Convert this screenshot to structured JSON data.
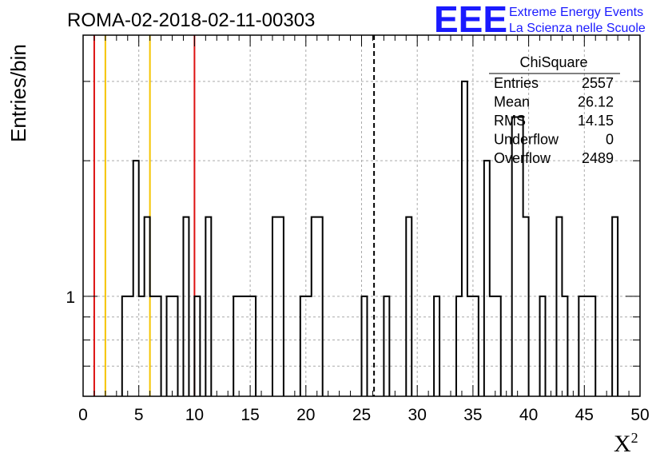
{
  "chart_data": {
    "type": "histogram",
    "title": "ROMA-02-2018-02-11-00303",
    "xlabel": "X",
    "xlabel_superscript": "2",
    "ylabel": "Entries/bin",
    "xlim": [
      0,
      50
    ],
    "ylim": [
      0.6,
      3.8
    ],
    "y_scale": "log",
    "grid": true,
    "x_ticks": [
      "0",
      "5",
      "10",
      "15",
      "20",
      "25",
      "30",
      "35",
      "40",
      "45",
      "50"
    ],
    "y_tick_labels": [
      {
        "value": 1,
        "label": "1"
      }
    ],
    "bin_width": 0.5,
    "bins": [
      {
        "x": 3.5,
        "y": 1
      },
      {
        "x": 4.0,
        "y": 1
      },
      {
        "x": 4.5,
        "y": 2
      },
      {
        "x": 5.0,
        "y": 1
      },
      {
        "x": 5.5,
        "y": 1.5
      },
      {
        "x": 6.0,
        "y": 1
      },
      {
        "x": 6.5,
        "y": 1
      },
      {
        "x": 7.5,
        "y": 1
      },
      {
        "x": 8.0,
        "y": 1
      },
      {
        "x": 9.0,
        "y": 1.5
      },
      {
        "x": 10.0,
        "y": 1
      },
      {
        "x": 11.0,
        "y": 1.5
      },
      {
        "x": 13.5,
        "y": 1
      },
      {
        "x": 14.0,
        "y": 1
      },
      {
        "x": 14.5,
        "y": 1
      },
      {
        "x": 15.0,
        "y": 1
      },
      {
        "x": 17.0,
        "y": 1.5
      },
      {
        "x": 17.5,
        "y": 1.5
      },
      {
        "x": 19.5,
        "y": 1
      },
      {
        "x": 20.0,
        "y": 1
      },
      {
        "x": 20.5,
        "y": 1.5
      },
      {
        "x": 21.0,
        "y": 1.5
      },
      {
        "x": 25.0,
        "y": 1
      },
      {
        "x": 27.0,
        "y": 1
      },
      {
        "x": 29.0,
        "y": 1.5
      },
      {
        "x": 31.5,
        "y": 1
      },
      {
        "x": 33.5,
        "y": 1
      },
      {
        "x": 34.0,
        "y": 3
      },
      {
        "x": 34.5,
        "y": 1
      },
      {
        "x": 35.0,
        "y": 1
      },
      {
        "x": 36.0,
        "y": 2
      },
      {
        "x": 36.5,
        "y": 1
      },
      {
        "x": 37.0,
        "y": 1
      },
      {
        "x": 38.5,
        "y": 2.5
      },
      {
        "x": 39.0,
        "y": 2.5
      },
      {
        "x": 39.5,
        "y": 1.5
      },
      {
        "x": 41.0,
        "y": 1
      },
      {
        "x": 42.5,
        "y": 1.5
      },
      {
        "x": 43.0,
        "y": 1
      },
      {
        "x": 44.5,
        "y": 1
      },
      {
        "x": 45.0,
        "y": 1
      },
      {
        "x": 45.5,
        "y": 1
      },
      {
        "x": 47.5,
        "y": 1.5
      }
    ],
    "vertical_lines": [
      {
        "x": 1.0,
        "color": "#dd1111",
        "style": "solid"
      },
      {
        "x": 2.0,
        "color": "#f5c400",
        "style": "solid"
      },
      {
        "x": 6.0,
        "color": "#f5c400",
        "style": "solid"
      },
      {
        "x": 10.0,
        "color": "#dd1111",
        "style": "solid"
      },
      {
        "x": 26.12,
        "color": "#000000",
        "style": "dashed"
      }
    ]
  },
  "stats": {
    "title": "ChiSquare",
    "rows": [
      {
        "label": "Entries",
        "value": "2557"
      },
      {
        "label": "Mean",
        "value": "26.12"
      },
      {
        "label": "RMS",
        "value": "14.15"
      },
      {
        "label": "Underflow",
        "value": "0"
      },
      {
        "label": "Overflow",
        "value": "2489"
      }
    ]
  },
  "logo": {
    "mark": "EEE",
    "line1": "Extreme Energy Events",
    "line2": "La Scienza nelle Scuole",
    "color": "#1a1aff"
  }
}
